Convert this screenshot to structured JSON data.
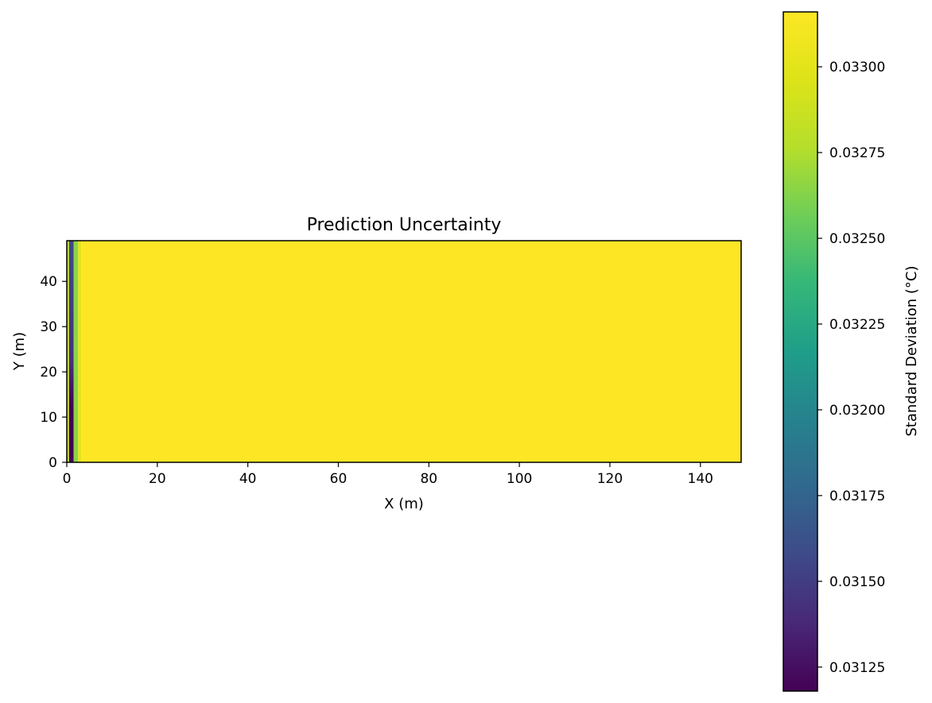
{
  "chart_data": {
    "type": "heatmap",
    "title": "Prediction Uncertainty",
    "xlabel": "X (m)",
    "ylabel": "Y (m)",
    "xlim": [
      0,
      149
    ],
    "ylim": [
      0,
      49
    ],
    "x_ticks": [
      "0",
      "20",
      "40",
      "60",
      "80",
      "100",
      "120",
      "140"
    ],
    "y_ticks": [
      "0",
      "10",
      "20",
      "30",
      "40"
    ],
    "grid": false,
    "colormap": "viridis",
    "colorbar": {
      "label": "Standard Deviation (°C)",
      "range": [
        0.03118,
        0.03316
      ],
      "ticks": [
        "0.03125",
        "0.03150",
        "0.03175",
        "0.03200",
        "0.03225",
        "0.03250",
        "0.03275",
        "0.03300"
      ]
    },
    "columns": [
      {
        "x": [
          0,
          0.5
        ],
        "value": 0.03283
      },
      {
        "x": [
          0.5,
          1.5
        ],
        "value": 0.0314
      },
      {
        "x": [
          1.5,
          2.5
        ],
        "value": 0.03265
      },
      {
        "x": [
          2.5,
          3.2
        ],
        "value": 0.033
      },
      {
        "x": [
          3.2,
          149
        ],
        "value": 0.03316
      }
    ],
    "column_notes": [
      "the column at x≈1.5 darkens toward the bottom (~0.03118 near y=0-10)"
    ]
  }
}
